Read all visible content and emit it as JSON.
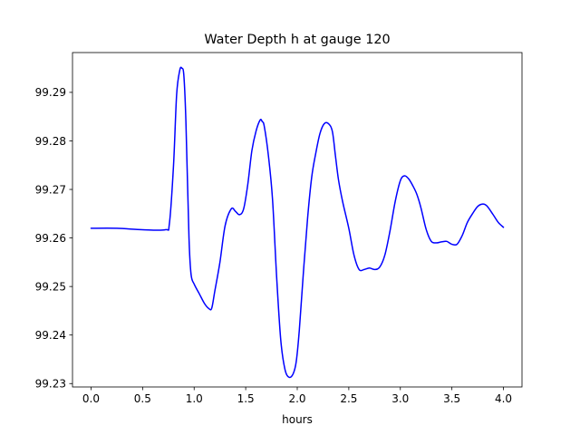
{
  "chart_data": {
    "type": "line",
    "title": "Water Depth h at gauge 120",
    "xlabel": "hours",
    "ylabel": "",
    "xlim": [
      -0.18,
      4.18
    ],
    "ylim": [
      99.2293,
      99.2982
    ],
    "xticks": [
      0.0,
      0.5,
      1.0,
      1.5,
      2.0,
      2.5,
      3.0,
      3.5,
      4.0
    ],
    "xtick_labels": [
      "0.0",
      "0.5",
      "1.0",
      "1.5",
      "2.0",
      "2.5",
      "3.0",
      "3.5",
      "4.0"
    ],
    "yticks": [
      99.23,
      99.24,
      99.25,
      99.26,
      99.27,
      99.28,
      99.29
    ],
    "ytick_labels": [
      "99.23",
      "99.24",
      "99.25",
      "99.26",
      "99.27",
      "99.28",
      "99.29"
    ],
    "grid": false,
    "legend": "none",
    "series": [
      {
        "color": "#0000ff",
        "x": [
          0.0,
          0.25,
          0.5,
          0.72,
          0.76,
          0.8,
          0.83,
          0.86,
          0.88,
          0.9,
          0.92,
          0.95,
          0.97,
          1.0,
          1.05,
          1.1,
          1.14,
          1.17,
          1.2,
          1.25,
          1.3,
          1.36,
          1.4,
          1.44,
          1.48,
          1.52,
          1.56,
          1.6,
          1.64,
          1.66,
          1.68,
          1.72,
          1.76,
          1.8,
          1.84,
          1.88,
          1.92,
          1.96,
          1.99,
          2.02,
          2.06,
          2.1,
          2.14,
          2.18,
          2.22,
          2.26,
          2.3,
          2.34,
          2.37,
          2.4,
          2.44,
          2.5,
          2.55,
          2.6,
          2.65,
          2.7,
          2.75,
          2.8,
          2.85,
          2.9,
          2.95,
          3.0,
          3.04,
          3.08,
          3.12,
          3.16,
          3.2,
          3.25,
          3.3,
          3.35,
          3.4,
          3.45,
          3.5,
          3.55,
          3.6,
          3.65,
          3.7,
          3.75,
          3.8,
          3.84,
          3.9,
          3.95,
          4.0
        ],
        "y": [
          99.262,
          99.262,
          99.2617,
          99.2617,
          99.263,
          99.275,
          99.2895,
          99.2945,
          99.295,
          99.2935,
          99.284,
          99.26,
          99.2525,
          99.2505,
          99.2485,
          99.2465,
          99.2455,
          99.2455,
          99.249,
          99.255,
          99.2625,
          99.266,
          99.2655,
          99.2648,
          99.266,
          99.271,
          99.278,
          99.282,
          99.2843,
          99.284,
          99.283,
          99.277,
          99.268,
          99.252,
          99.239,
          99.233,
          99.2313,
          99.232,
          99.2345,
          99.241,
          99.253,
          99.264,
          99.2725,
          99.2775,
          99.2815,
          99.2835,
          99.2836,
          99.282,
          99.277,
          99.272,
          99.2675,
          99.262,
          99.2565,
          99.2535,
          99.2535,
          99.2538,
          99.2535,
          99.254,
          99.2565,
          99.2615,
          99.2675,
          99.2718,
          99.2728,
          99.2722,
          99.2708,
          99.269,
          99.2662,
          99.2618,
          99.2593,
          99.259,
          99.2592,
          99.2593,
          99.2587,
          99.2587,
          99.2605,
          99.2632,
          99.265,
          99.2665,
          99.267,
          99.2666,
          99.2648,
          99.2632,
          99.2622
        ]
      }
    ]
  }
}
